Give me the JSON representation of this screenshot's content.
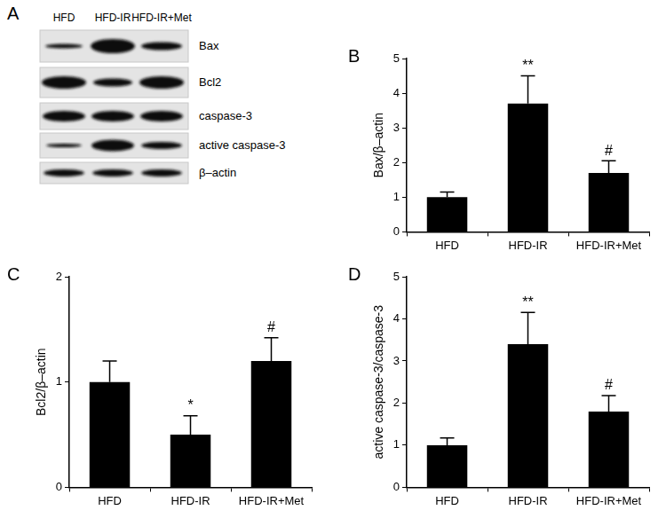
{
  "blot": {
    "panel": "A",
    "lanes": [
      "HFD",
      "HFD-IR",
      "HFD-IR+Met"
    ],
    "rows": [
      "Bax",
      "Bcl2",
      "caspase-3",
      "active caspase-3",
      "β–actin"
    ]
  },
  "chart_data": [
    {
      "type": "bar",
      "panel": "B",
      "y_label": "Bax/β–actin",
      "categories": [
        "HFD",
        "HFD-IR",
        "HFD-IR+Met"
      ],
      "values": [
        1.0,
        3.7,
        1.7
      ],
      "errors": [
        0.15,
        0.8,
        0.35
      ],
      "annotations": [
        null,
        "**",
        "#"
      ],
      "color": "#000000",
      "ylim": [
        0,
        5
      ],
      "yticks": [
        0,
        1,
        2,
        3,
        4,
        5
      ],
      "grid": false
    },
    {
      "type": "bar",
      "panel": "C",
      "y_label": "Bcl2/β–actin",
      "categories": [
        "HFD",
        "HFD-IR",
        "HFD-IR+Met"
      ],
      "values": [
        1.0,
        0.5,
        1.2
      ],
      "errors": [
        0.2,
        0.18,
        0.22
      ],
      "annotations": [
        null,
        "*",
        "#"
      ],
      "color": "#000000",
      "ylim": [
        0,
        2
      ],
      "yticks": [
        0,
        1,
        2
      ],
      "grid": false
    },
    {
      "type": "bar",
      "panel": "D",
      "y_label": "active caspase-3/caspase-3",
      "categories": [
        "HFD",
        "HFD-IR",
        "HFD-IR+Met"
      ],
      "values": [
        1.0,
        3.4,
        1.8
      ],
      "errors": [
        0.17,
        0.75,
        0.38
      ],
      "annotations": [
        null,
        "**",
        "#"
      ],
      "color": "#000000",
      "ylim": [
        0,
        5
      ],
      "yticks": [
        0,
        1,
        2,
        3,
        4,
        5
      ],
      "grid": false
    }
  ]
}
